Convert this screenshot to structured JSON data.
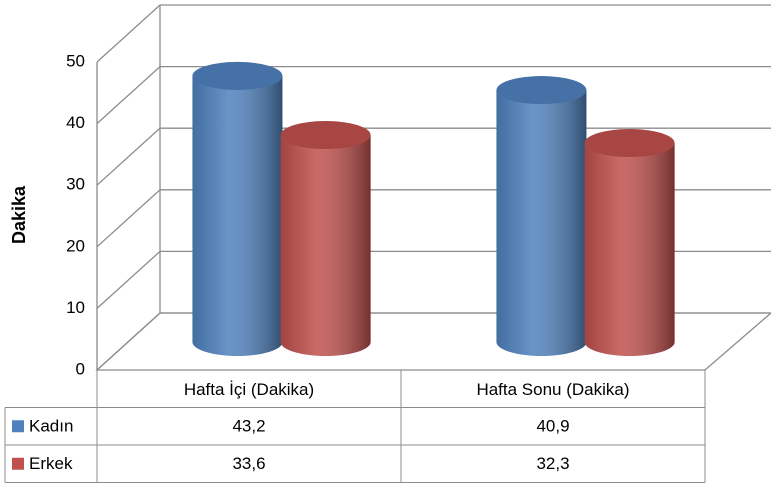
{
  "chart_data": {
    "type": "bar",
    "y_label": "Dakika",
    "categories": [
      "Hafta İçi (Dakika)",
      "Hafta Sonu (Dakika)"
    ],
    "series": [
      {
        "name": "Kadın",
        "color": "#4f81bd",
        "values": [
          43.2,
          40.9
        ],
        "value_labels": [
          "43,2",
          "40,9"
        ]
      },
      {
        "name": "Erkek",
        "color": "#c0504d",
        "values": [
          33.6,
          32.3
        ],
        "value_labels": [
          "33,6",
          "32,3"
        ]
      }
    ],
    "ylim": [
      0,
      50
    ],
    "yticks": [
      0,
      10,
      20,
      30,
      40,
      50
    ],
    "grid": true
  }
}
